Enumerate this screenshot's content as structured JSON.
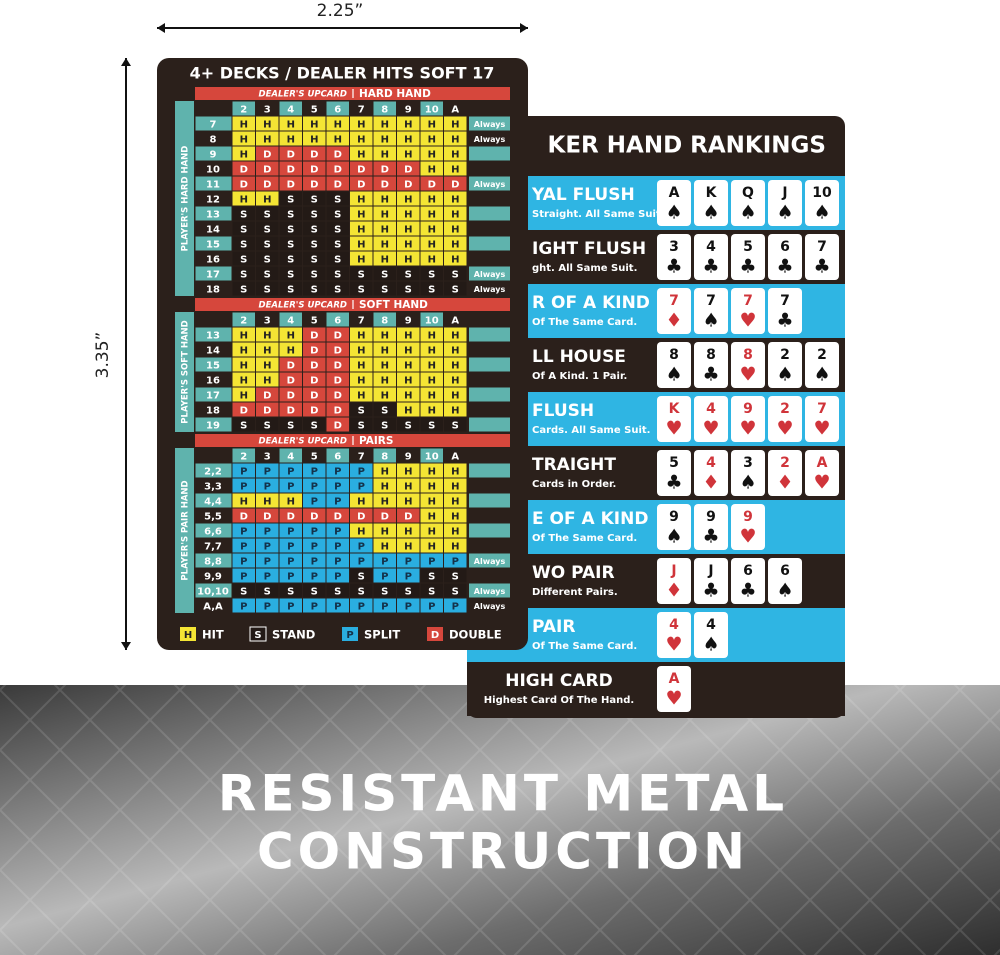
{
  "dimensions": {
    "width": "2.25”",
    "height": "3.35”"
  },
  "strategy_card": {
    "title": "4+ DECKS / DEALER HITS SOFT 17",
    "sections": [
      {
        "header": "DEALER'S UPCARD",
        "name": "HARD HAND",
        "side_label": "PLAYER'S HARD HAND",
        "upcards": [
          "2",
          "3",
          "4",
          "5",
          "6",
          "7",
          "8",
          "9",
          "10",
          "A"
        ],
        "rows": [
          {
            "label": "7",
            "cells": [
              "H",
              "H",
              "H",
              "H",
              "H",
              "H",
              "H",
              "H",
              "H",
              "H"
            ],
            "note": "Always"
          },
          {
            "label": "8",
            "cells": [
              "H",
              "H",
              "H",
              "H",
              "H",
              "H",
              "H",
              "H",
              "H",
              "H"
            ],
            "note": "Always"
          },
          {
            "label": "9",
            "cells": [
              "H",
              "D",
              "D",
              "D",
              "D",
              "H",
              "H",
              "H",
              "H",
              "H"
            ]
          },
          {
            "label": "10",
            "cells": [
              "D",
              "D",
              "D",
              "D",
              "D",
              "D",
              "D",
              "D",
              "H",
              "H"
            ]
          },
          {
            "label": "11",
            "cells": [
              "D",
              "D",
              "D",
              "D",
              "D",
              "D",
              "D",
              "D",
              "D",
              "D"
            ],
            "note": "Always"
          },
          {
            "label": "12",
            "cells": [
              "H",
              "H",
              "S",
              "S",
              "S",
              "H",
              "H",
              "H",
              "H",
              "H"
            ]
          },
          {
            "label": "13",
            "cells": [
              "S",
              "S",
              "S",
              "S",
              "S",
              "H",
              "H",
              "H",
              "H",
              "H"
            ]
          },
          {
            "label": "14",
            "cells": [
              "S",
              "S",
              "S",
              "S",
              "S",
              "H",
              "H",
              "H",
              "H",
              "H"
            ]
          },
          {
            "label": "15",
            "cells": [
              "S",
              "S",
              "S",
              "S",
              "S",
              "H",
              "H",
              "H",
              "H",
              "H"
            ]
          },
          {
            "label": "16",
            "cells": [
              "S",
              "S",
              "S",
              "S",
              "S",
              "H",
              "H",
              "H",
              "H",
              "H"
            ]
          },
          {
            "label": "17",
            "cells": [
              "S",
              "S",
              "S",
              "S",
              "S",
              "S",
              "S",
              "S",
              "S",
              "S"
            ],
            "note": "Always"
          },
          {
            "label": "18",
            "cells": [
              "S",
              "S",
              "S",
              "S",
              "S",
              "S",
              "S",
              "S",
              "S",
              "S"
            ],
            "note": "Always"
          }
        ]
      },
      {
        "header": "DEALER'S UPCARD",
        "name": "SOFT HAND",
        "side_label": "PLAYER'S SOFT HAND",
        "upcards": [
          "2",
          "3",
          "4",
          "5",
          "6",
          "7",
          "8",
          "9",
          "10",
          "A"
        ],
        "rows": [
          {
            "label": "13",
            "cells": [
              "H",
              "H",
              "H",
              "D",
              "D",
              "H",
              "H",
              "H",
              "H",
              "H"
            ]
          },
          {
            "label": "14",
            "cells": [
              "H",
              "H",
              "H",
              "D",
              "D",
              "H",
              "H",
              "H",
              "H",
              "H"
            ]
          },
          {
            "label": "15",
            "cells": [
              "H",
              "H",
              "D",
              "D",
              "D",
              "H",
              "H",
              "H",
              "H",
              "H"
            ]
          },
          {
            "label": "16",
            "cells": [
              "H",
              "H",
              "D",
              "D",
              "D",
              "H",
              "H",
              "H",
              "H",
              "H"
            ]
          },
          {
            "label": "17",
            "cells": [
              "H",
              "D",
              "D",
              "D",
              "D",
              "H",
              "H",
              "H",
              "H",
              "H"
            ]
          },
          {
            "label": "18",
            "cells": [
              "D",
              "D",
              "D",
              "D",
              "D",
              "S",
              "S",
              "H",
              "H",
              "H"
            ]
          },
          {
            "label": "19",
            "cells": [
              "S",
              "S",
              "S",
              "S",
              "D",
              "S",
              "S",
              "S",
              "S",
              "S"
            ]
          }
        ]
      },
      {
        "header": "DEALER'S UPCARD",
        "name": "PAIRS",
        "side_label": "PLAYER'S PAIR HAND",
        "upcards": [
          "2",
          "3",
          "4",
          "5",
          "6",
          "7",
          "8",
          "9",
          "10",
          "A"
        ],
        "rows": [
          {
            "label": "2,2",
            "cells": [
              "P",
              "P",
              "P",
              "P",
              "P",
              "P",
              "H",
              "H",
              "H",
              "H"
            ]
          },
          {
            "label": "3,3",
            "cells": [
              "P",
              "P",
              "P",
              "P",
              "P",
              "P",
              "H",
              "H",
              "H",
              "H"
            ]
          },
          {
            "label": "4,4",
            "cells": [
              "H",
              "H",
              "H",
              "P",
              "P",
              "H",
              "H",
              "H",
              "H",
              "H"
            ]
          },
          {
            "label": "5,5",
            "cells": [
              "D",
              "D",
              "D",
              "D",
              "D",
              "D",
              "D",
              "D",
              "H",
              "H"
            ]
          },
          {
            "label": "6,6",
            "cells": [
              "P",
              "P",
              "P",
              "P",
              "P",
              "H",
              "H",
              "H",
              "H",
              "H"
            ]
          },
          {
            "label": "7,7",
            "cells": [
              "P",
              "P",
              "P",
              "P",
              "P",
              "P",
              "H",
              "H",
              "H",
              "H"
            ]
          },
          {
            "label": "8,8",
            "cells": [
              "P",
              "P",
              "P",
              "P",
              "P",
              "P",
              "P",
              "P",
              "P",
              "P"
            ],
            "note": "Always"
          },
          {
            "label": "9,9",
            "cells": [
              "P",
              "P",
              "P",
              "P",
              "P",
              "S",
              "P",
              "P",
              "S",
              "S"
            ]
          },
          {
            "label": "10,10",
            "cells": [
              "S",
              "S",
              "S",
              "S",
              "S",
              "S",
              "S",
              "S",
              "S",
              "S"
            ],
            "note": "Always"
          },
          {
            "label": "A,A",
            "cells": [
              "P",
              "P",
              "P",
              "P",
              "P",
              "P",
              "P",
              "P",
              "P",
              "P"
            ],
            "note": "Always"
          }
        ]
      }
    ],
    "legend": [
      {
        "key": "H",
        "label": "HIT"
      },
      {
        "key": "S",
        "label": "STAND"
      },
      {
        "key": "P",
        "label": "SPLIT"
      },
      {
        "key": "D",
        "label": "DOUBLE"
      }
    ]
  },
  "rankings_card": {
    "title": "KER HAND RANKINGS",
    "hands": [
      {
        "name": "YAL FLUSH",
        "description": "Straight. All Same Suit.",
        "cards": [
          {
            "rank": "A",
            "suit": "♠"
          },
          {
            "rank": "K",
            "suit": "♠"
          },
          {
            "rank": "Q",
            "suit": "♠"
          },
          {
            "rank": "J",
            "suit": "♠"
          },
          {
            "rank": "10",
            "suit": "♠"
          }
        ]
      },
      {
        "name": "IGHT FLUSH",
        "description": "ght. All Same Suit.",
        "cards": [
          {
            "rank": "3",
            "suit": "♣"
          },
          {
            "rank": "4",
            "suit": "♣"
          },
          {
            "rank": "5",
            "suit": "♣"
          },
          {
            "rank": "6",
            "suit": "♣"
          },
          {
            "rank": "7",
            "suit": "♣"
          }
        ]
      },
      {
        "name": "R OF A KIND",
        "description": "Of The Same Card.",
        "cards": [
          {
            "rank": "7",
            "suit": "♦"
          },
          {
            "rank": "7",
            "suit": "♠"
          },
          {
            "rank": "7",
            "suit": "♥"
          },
          {
            "rank": "7",
            "suit": "♣"
          }
        ]
      },
      {
        "name": "LL HOUSE",
        "description": "Of A Kind. 1 Pair.",
        "cards": [
          {
            "rank": "8",
            "suit": "♠"
          },
          {
            "rank": "8",
            "suit": "♣"
          },
          {
            "rank": "8",
            "suit": "♥"
          },
          {
            "rank": "2",
            "suit": "♠"
          },
          {
            "rank": "2",
            "suit": "♠"
          }
        ]
      },
      {
        "name": "FLUSH",
        "description": "Cards. All Same Suit.",
        "cards": [
          {
            "rank": "K",
            "suit": "♥"
          },
          {
            "rank": "4",
            "suit": "♥"
          },
          {
            "rank": "9",
            "suit": "♥"
          },
          {
            "rank": "2",
            "suit": "♥"
          },
          {
            "rank": "7",
            "suit": "♥"
          }
        ]
      },
      {
        "name": "TRAIGHT",
        "description": "Cards in Order.",
        "cards": [
          {
            "rank": "5",
            "suit": "♣"
          },
          {
            "rank": "4",
            "suit": "♦"
          },
          {
            "rank": "3",
            "suit": "♠"
          },
          {
            "rank": "2",
            "suit": "♦"
          },
          {
            "rank": "A",
            "suit": "♥"
          }
        ]
      },
      {
        "name": "E OF A KIND",
        "description": "Of The Same Card.",
        "cards": [
          {
            "rank": "9",
            "suit": "♠"
          },
          {
            "rank": "9",
            "suit": "♣"
          },
          {
            "rank": "9",
            "suit": "♥"
          }
        ]
      },
      {
        "name": "WO PAIR",
        "description": "Different Pairs.",
        "cards": [
          {
            "rank": "J",
            "suit": "♦"
          },
          {
            "rank": "J",
            "suit": "♣"
          },
          {
            "rank": "6",
            "suit": "♣"
          },
          {
            "rank": "6",
            "suit": "♠"
          }
        ]
      },
      {
        "name": "PAIR",
        "description": "Of The Same Card.",
        "cards": [
          {
            "rank": "4",
            "suit": "♥"
          },
          {
            "rank": "4",
            "suit": "♠"
          }
        ]
      },
      {
        "name": "HIGH CARD",
        "description": "Highest Card Of The Hand.",
        "cards": [
          {
            "rank": "A",
            "suit": "♥"
          }
        ]
      }
    ]
  },
  "banner": {
    "lines": [
      "RESISTANT METAL",
      "CONSTRUCTION"
    ]
  }
}
